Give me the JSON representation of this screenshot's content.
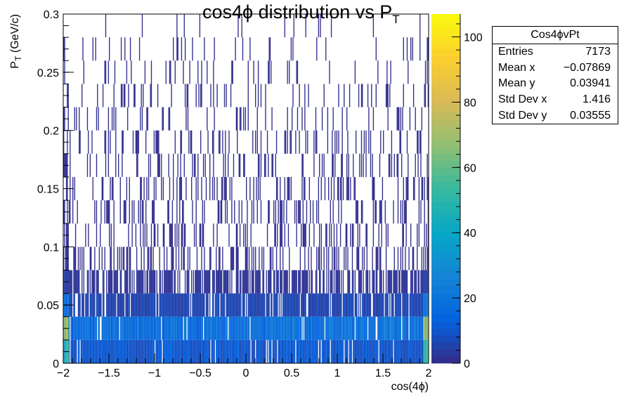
{
  "chart_data": {
    "type": "heatmap",
    "title": "cos4ϕ distribution vs P",
    "title_sub": "T",
    "xlabel": "cos(4ϕ)",
    "ylabel_main": "P",
    "ylabel_sub": "T",
    "ylabel_rest": " (GeV/c)",
    "xlim": [
      -2,
      2
    ],
    "ylim": [
      0,
      0.3
    ],
    "x_ticks": [
      -2,
      -1.5,
      -1,
      -0.5,
      0,
      0.5,
      1,
      1.5,
      2
    ],
    "x_tick_labels": [
      "−2",
      "−1.5",
      "−1",
      "−0.5",
      "0",
      "0.5",
      "1",
      "1.5",
      "2"
    ],
    "y_ticks": [
      0,
      0.05,
      0.1,
      0.15,
      0.2,
      0.25,
      0.3
    ],
    "y_tick_labels": [
      "0",
      "0.05",
      "0.1",
      "0.15",
      "0.2",
      "0.25",
      "0.3"
    ],
    "z_range": [
      0,
      107
    ],
    "z_ticks": [
      0,
      20,
      40,
      60,
      80,
      100
    ],
    "z_tick_labels": [
      "0",
      "20",
      "40",
      "60",
      "80",
      "100"
    ],
    "colormap": [
      "#352a87",
      "#0363e1",
      "#1485d4",
      "#06a7c6",
      "#38b99e",
      "#92bf73",
      "#d9ba56",
      "#fcce2e",
      "#f9fb0e"
    ],
    "bins_y": [
      0.0,
      0.02,
      0.04,
      0.06,
      0.08,
      0.1,
      0.12,
      0.14,
      0.16,
      0.18,
      0.2,
      0.22,
      0.24,
      0.26,
      0.28,
      0.3
    ],
    "row_counts": [
      {
        "y_bin": [
          0.0,
          0.02
        ],
        "typical": 10,
        "edge": 60
      },
      {
        "y_bin": [
          0.02,
          0.04
        ],
        "typical": 18,
        "edge": 80
      },
      {
        "y_bin": [
          0.04,
          0.06
        ],
        "typical": 6,
        "edge": 25
      },
      {
        "y_bin": [
          0.06,
          0.08
        ],
        "typical": 2,
        "edge": 6
      },
      {
        "y_bin": [
          0.08,
          0.3
        ],
        "typical": 1,
        "edge": 2
      }
    ]
  },
  "stats": {
    "name": "Cos4ϕvPt",
    "rows": [
      {
        "label": "Entries",
        "value": "7173"
      },
      {
        "label": "Mean x",
        "value": "−0.07869"
      },
      {
        "label": "Mean y",
        "value": "0.03941"
      },
      {
        "label": "Std Dev x",
        "value": "1.416"
      },
      {
        "label": "Std Dev y",
        "value": "0.03555"
      }
    ]
  }
}
